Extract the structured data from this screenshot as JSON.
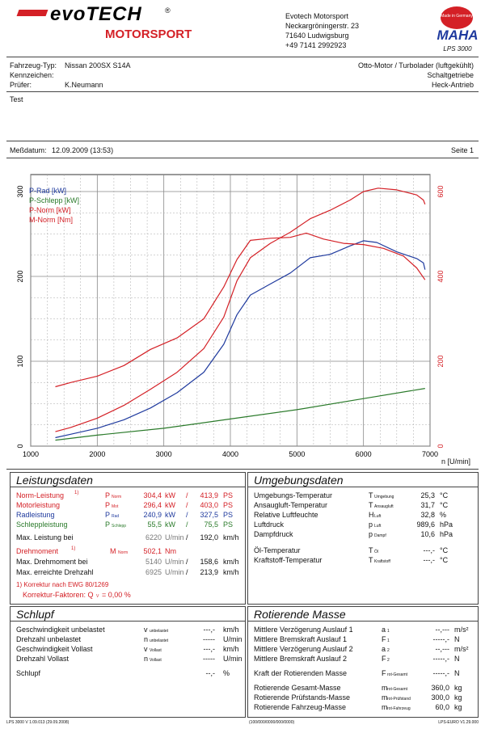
{
  "header": {
    "brand_top": "evoTECH",
    "brand_reg": "®",
    "brand_bottom": "MOTORSPORT",
    "company": "Evotech Motorsport",
    "street": "Neckargröningerstr. 23",
    "city": "71640 Ludwigsburg",
    "phone": "+49 7141 2992923",
    "maha_top": "Made in Germany",
    "maha_logo": "MAHA",
    "maha_model": "LPS 3000"
  },
  "vehicle": {
    "typ_label": "Fahrzeug-Typ:",
    "typ_value": "Nissan 200SX S14A",
    "kenn_label": "Kennzeichen:",
    "pruefer_label": "Prüfer:",
    "pruefer_value": "K.Neumann",
    "engine": "Otto-Motor / Turbolader (luftgekühlt)",
    "gearbox": "Schaltgetriebe",
    "drive": "Heck-Antrieb",
    "comment": "Test",
    "date_label": "Meßdatum:",
    "date_value": "12.09.2009 (13:53)",
    "page": "Seite 1"
  },
  "chart_data": {
    "type": "line",
    "xlabel": "n [U/min]",
    "xlim": [
      1000,
      7000
    ],
    "x_ticks": [
      "1000",
      "2000",
      "3000",
      "4000",
      "5000",
      "6000",
      "7000"
    ],
    "ylim_left": [
      0,
      320
    ],
    "y_ticks_left": [
      "0",
      "100",
      "200",
      "300"
    ],
    "ylim_right": [
      0,
      640
    ],
    "y_ticks_right": [
      "0",
      "200",
      "400",
      "600"
    ],
    "legend": [
      "P-Rad [kW]",
      "P-Schlepp [kW]",
      "P-Norm [kW]",
      "M-Norm [Nm]"
    ],
    "series": [
      {
        "name": "P-Rad [kW]",
        "color": "#1f3a9e",
        "axis": "left",
        "x": [
          1370,
          1600,
          2000,
          2400,
          2800,
          3200,
          3600,
          3900,
          4100,
          4300,
          4600,
          4900,
          5200,
          5500,
          5800,
          6000,
          6200,
          6500,
          6800,
          6900,
          6925
        ],
        "y": [
          10,
          14,
          21,
          31,
          45,
          63,
          87,
          120,
          155,
          178,
          191,
          204,
          222,
          226,
          236,
          242,
          240,
          229,
          221,
          216,
          208
        ]
      },
      {
        "name": "P-Schlepp [kW]",
        "color": "#2a7a2a",
        "axis": "left",
        "x": [
          1370,
          2000,
          3000,
          4000,
          5000,
          6000,
          6925
        ],
        "y": [
          7,
          13,
          21,
          32,
          43,
          56,
          68
        ]
      },
      {
        "name": "P-Norm [kW]",
        "color": "#d42026",
        "axis": "left",
        "x": [
          1370,
          1600,
          2000,
          2400,
          2800,
          3200,
          3600,
          3900,
          4100,
          4300,
          4600,
          4900,
          5200,
          5500,
          5800,
          6000,
          6220,
          6500,
          6800,
          6900,
          6925
        ],
        "y": [
          17,
          22,
          33,
          48,
          67,
          87,
          115,
          152,
          195,
          222,
          239,
          252,
          268,
          278,
          290,
          300,
          304,
          302,
          296,
          290,
          285
        ]
      },
      {
        "name": "M-Norm [Nm]",
        "color": "#d42026",
        "axis": "right",
        "x": [
          1370,
          1600,
          2000,
          2400,
          2800,
          3200,
          3600,
          3900,
          4100,
          4300,
          4600,
          4900,
          5140,
          5400,
          5700,
          6000,
          6300,
          6600,
          6800,
          6925
        ],
        "y": [
          140,
          150,
          165,
          190,
          228,
          255,
          300,
          375,
          440,
          485,
          490,
          492,
          502,
          488,
          478,
          475,
          466,
          448,
          420,
          392
        ]
      }
    ]
  },
  "leistung": {
    "title": "Leistungsdaten",
    "rows": [
      {
        "label": "Norm-Leistung",
        "sup": "1)",
        "sym": "P",
        "sub": "Norm",
        "v1": "304,4",
        "u1": "kW",
        "sep": "/",
        "v2": "413,9",
        "u2": "PS"
      },
      {
        "label": "Motorleistung",
        "sup": "",
        "sym": "P",
        "sub": "Mot",
        "v1": "296,4",
        "u1": "kW",
        "sep": "/",
        "v2": "403,0",
        "u2": "PS"
      },
      {
        "label": "Radleistung",
        "sup": "",
        "sym": "P",
        "sub": "Rad",
        "v1": "240,9",
        "u1": "kW",
        "sep": "/",
        "v2": "327,5",
        "u2": "PS"
      },
      {
        "label": "Schleppleistung",
        "sup": "",
        "sym": "P",
        "sub": "Schlepp",
        "v1": "55,5",
        "u1": "kW",
        "sep": "/",
        "v2": "75,5",
        "u2": "PS"
      }
    ],
    "maxp_label": "Max. Leistung bei",
    "maxp_rpm": "6220",
    "maxp_rpm_unit": "U/min",
    "maxp_sep": "/",
    "maxp_speed": "192,0",
    "maxp_speed_unit": "km/h",
    "dreh_label": "Drehmoment",
    "dreh_sup": "1)",
    "dreh_sym": "M",
    "dreh_sub": "Norm",
    "dreh_value": "502,1",
    "dreh_unit": "Nm",
    "maxd_label": "Max. Drehmoment bei",
    "maxd_rpm": "5140",
    "maxd_rpm_unit": "U/min",
    "maxd_sep": "/",
    "maxd_speed": "158,6",
    "maxd_speed_unit": "km/h",
    "maxn_label": "Max. erreichte Drehzahl",
    "maxn_rpm": "6925",
    "maxn_rpm_unit": "U/min",
    "maxn_sep": "/",
    "maxn_speed": "213,9",
    "maxn_speed_unit": "km/h",
    "korr1": "1) Korrektur nach EWG 80/1269",
    "korr2": "Korrektur-Faktoren: Q",
    "korr2_sub": "V",
    "korr2_value": "=   0,00 %"
  },
  "umgebung": {
    "title": "Umgebungsdaten",
    "rows": [
      {
        "label": "Umgebungs-Temperatur",
        "sym": "T",
        "sub": "Umgebung",
        "value": "25,3",
        "unit": "°C"
      },
      {
        "label": "Ansaugluft-Temperatur",
        "sym": "T",
        "sub": "Ansaugluft",
        "value": "31,7",
        "unit": "°C"
      },
      {
        "label": "Relative Luftfeuchte",
        "sym": "H",
        "sub": "Luft",
        "value": "32,8",
        "unit": "%"
      },
      {
        "label": "Luftdruck",
        "sym": "p",
        "sub": "Luft",
        "value": "989,6",
        "unit": "hPa"
      },
      {
        "label": "Dampfdruck",
        "sym": "p",
        "sub": "Dampf",
        "value": "10,6",
        "unit": "hPa"
      },
      {
        "label": "Öl-Temperatur",
        "sym": "T",
        "sub": "Öl",
        "value": "---,-",
        "unit": "°C"
      },
      {
        "label": "Kraftstoff-Temperatur",
        "sym": "T",
        "sub": "Kraftstoff",
        "value": "---,-",
        "unit": "°C"
      }
    ]
  },
  "schlupf": {
    "title": "Schlupf",
    "rows": [
      {
        "label": "Geschwindigkeit unbelastet",
        "sym": "v",
        "sub": "unbelastet",
        "value": "---,-",
        "unit": "km/h"
      },
      {
        "label": "Drehzahl unbelastet",
        "sym": "n",
        "sub": "unbelastet",
        "value": "-----",
        "unit": "U/min"
      },
      {
        "label": "Geschwindigkeit Vollast",
        "sym": "v",
        "sub": "Vollast",
        "value": "---,-",
        "unit": "km/h"
      },
      {
        "label": "Drehzahl Vollast",
        "sym": "n",
        "sub": "Vollast",
        "value": "-----",
        "unit": "U/min"
      },
      {
        "label": "Schlupf",
        "sym": "",
        "sub": "",
        "value": "--,-",
        "unit": "%"
      }
    ]
  },
  "masse": {
    "title": "Rotierende Masse",
    "rows": [
      {
        "label": "Mittlere Verzögerung Auslauf 1",
        "sym": "a",
        "sub": "1",
        "value": "--,---",
        "unit": "m/s²"
      },
      {
        "label": "Mittlere Bremskraft Auslauf 1",
        "sym": "F",
        "sub": "1",
        "value": "-----,-",
        "unit": "N"
      },
      {
        "label": "Mittlere Verzögerung Auslauf 2",
        "sym": "a",
        "sub": "2",
        "value": "--,---",
        "unit": "m/s²"
      },
      {
        "label": "Mittlere Bremskraft Auslauf 2",
        "sym": "F",
        "sub": "2",
        "value": "-----,-",
        "unit": "N"
      },
      {
        "label": "Kraft der Rotierenden Masse",
        "sym": "F",
        "sub": "rot-Gesamt",
        "value": "-----,-",
        "unit": "N"
      },
      {
        "label": "Rotierende Gesamt-Masse",
        "sym": "m",
        "sub": "rot-Gesamt",
        "value": "360,0",
        "unit": "kg"
      },
      {
        "label": "Rotierende Prüfstands-Masse",
        "sym": "m",
        "sub": "rot-Prüfstand",
        "value": "300,0",
        "unit": "kg"
      },
      {
        "label": "Rotierende Fahrzeug-Masse",
        "sym": "m",
        "sub": "rot-Fahrzeug",
        "value": "60,0",
        "unit": "kg"
      }
    ]
  },
  "footer": {
    "left": "LPS 3000 V 1.09.013 (29.09.2008)",
    "center": "(100/000/0000/000/0000)",
    "right": "LPS-EURO V1.29.000"
  }
}
